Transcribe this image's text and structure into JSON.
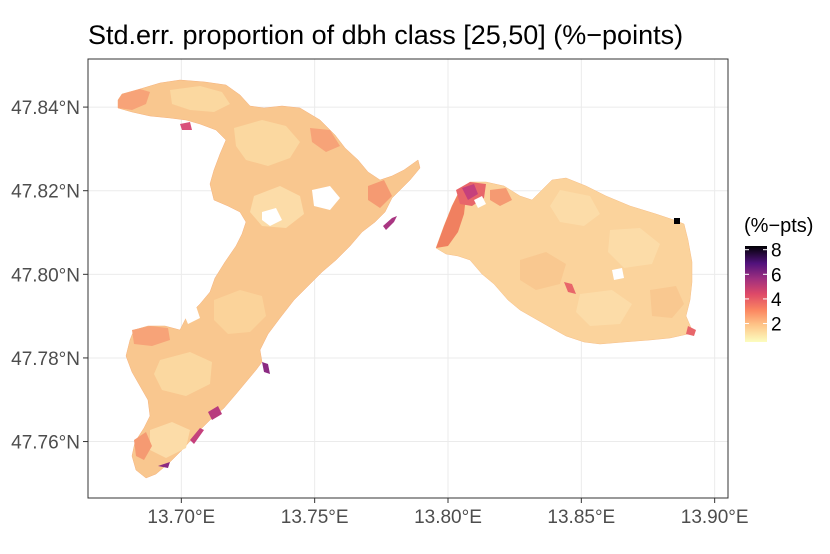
{
  "title": "Std.err. proportion of dbh class [25,50] (%−points)",
  "map": {
    "x_axis": {
      "range": [
        13.665,
        13.905
      ],
      "ticks": [
        {
          "value": 13.7,
          "label": "13.70°E"
        },
        {
          "value": 13.75,
          "label": "13.75°E"
        },
        {
          "value": 13.8,
          "label": "13.80°E"
        },
        {
          "value": 13.85,
          "label": "13.85°E"
        },
        {
          "value": 13.9,
          "label": "13.90°E"
        }
      ]
    },
    "y_axis": {
      "range": [
        47.7465,
        47.8515
      ],
      "ticks": [
        {
          "value": 47.76,
          "label": "47.76°N"
        },
        {
          "value": 47.78,
          "label": "47.78°N"
        },
        {
          "value": 47.8,
          "label": "47.80°N"
        },
        {
          "value": 47.82,
          "label": "47.82°N"
        },
        {
          "value": 47.84,
          "label": "47.84°N"
        }
      ]
    },
    "grid": true,
    "fill_scale": "magma",
    "colors": {
      "low": "#fde4a6",
      "mid": "#f98c68",
      "high_mid": "#c5407c",
      "high": "#000004",
      "base_fill": "#f9c890",
      "panel_border": "#333333",
      "grid": "#ebebeb"
    }
  },
  "legend": {
    "title": "(%−pts)",
    "range": [
      0.5,
      8.3
    ],
    "breaks": [
      {
        "value": 2,
        "label": "2"
      },
      {
        "value": 4,
        "label": "4"
      },
      {
        "value": 6,
        "label": "6"
      },
      {
        "value": 8,
        "label": "8"
      }
    ]
  }
}
